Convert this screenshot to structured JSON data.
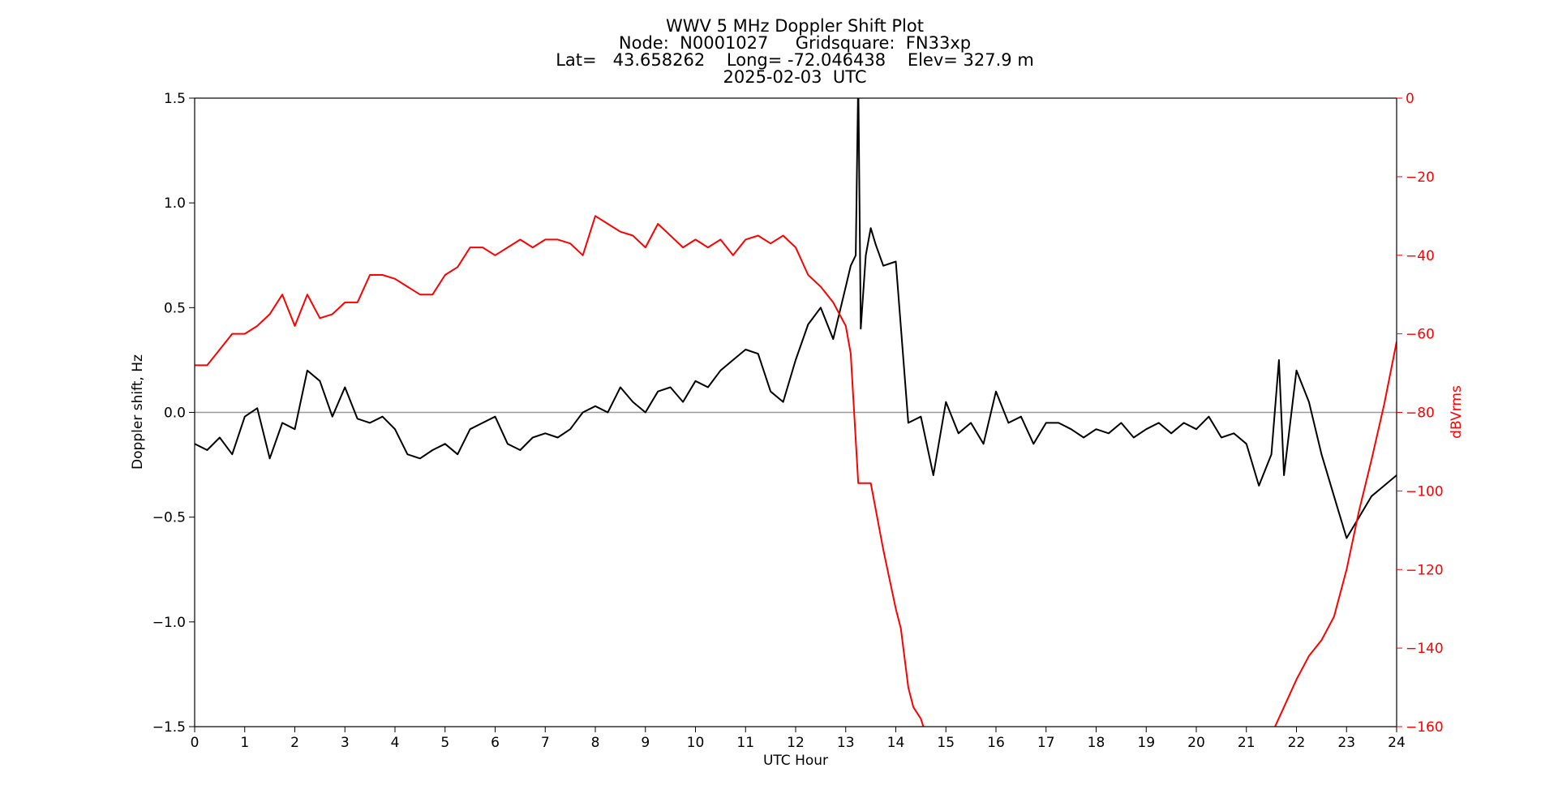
{
  "chart_data": {
    "type": "line",
    "title_lines": [
      "WWV 5 MHz Doppler Shift Plot",
      "Node:  N0001027     Gridsquare:  FN33xp",
      "Lat=   43.658262    Long= -72.046438    Elev= 327.9 m",
      "2025-02-03  UTC"
    ],
    "xlabel": "UTC Hour",
    "ylabel_left": "Doppler shift, Hz",
    "ylabel_right": "dBVrms",
    "xlim": [
      0,
      24
    ],
    "ylim_left": [
      -1.5,
      1.5
    ],
    "ylim_right": [
      -160,
      0
    ],
    "x_ticks": [
      "0",
      "1",
      "2",
      "3",
      "4",
      "5",
      "6",
      "7",
      "8",
      "9",
      "10",
      "11",
      "12",
      "13",
      "14",
      "15",
      "16",
      "17",
      "18",
      "19",
      "20",
      "21",
      "22",
      "23",
      "24"
    ],
    "y_left_ticks": [
      "1.5",
      "1.0",
      "0.5",
      "0.0",
      "−0.5",
      "−1.0",
      "−1.5"
    ],
    "y_left_tick_values": [
      1.5,
      1.0,
      0.5,
      0.0,
      -0.5,
      -1.0,
      -1.5
    ],
    "y_right_ticks": [
      "0",
      "−20",
      "−40",
      "−60",
      "−80",
      "−100",
      "−120",
      "−140",
      "−160"
    ],
    "y_right_tick_values": [
      0,
      -20,
      -40,
      -60,
      -80,
      -100,
      -120,
      -140,
      -160
    ],
    "zero_line": 0.0,
    "series": [
      {
        "axis": "left",
        "color": "#000000",
        "x": [
          0,
          0.25,
          0.5,
          0.75,
          1,
          1.25,
          1.5,
          1.75,
          2,
          2.25,
          2.5,
          2.75,
          3,
          3.25,
          3.5,
          3.75,
          4,
          4.25,
          4.5,
          4.75,
          5,
          5.25,
          5.5,
          5.75,
          6,
          6.25,
          6.5,
          6.75,
          7,
          7.25,
          7.5,
          7.75,
          8,
          8.25,
          8.5,
          8.75,
          9,
          9.25,
          9.5,
          9.75,
          10,
          10.25,
          10.5,
          10.75,
          11,
          11.25,
          11.5,
          11.75,
          12,
          12.25,
          12.5,
          12.75,
          13,
          13.1,
          13.2,
          13.25,
          13.3,
          13.4,
          13.5,
          13.6,
          13.75,
          14,
          14.25,
          14.5,
          14.75,
          15,
          15.25,
          15.5,
          15.75,
          16,
          16.25,
          16.5,
          16.75,
          17,
          17.25,
          17.5,
          17.75,
          18,
          18.25,
          18.5,
          18.75,
          19,
          19.25,
          19.5,
          19.75,
          20,
          20.25,
          20.5,
          20.75,
          21,
          21.25,
          21.5,
          21.65,
          21.75,
          22,
          22.25,
          22.5,
          22.75,
          23,
          23.25,
          23.5,
          23.75,
          24
        ],
        "y": [
          -0.15,
          -0.18,
          -0.12,
          -0.2,
          -0.02,
          0.02,
          -0.22,
          -0.05,
          -0.08,
          0.2,
          0.15,
          -0.02,
          0.12,
          -0.03,
          -0.05,
          -0.02,
          -0.08,
          -0.2,
          -0.22,
          -0.18,
          -0.15,
          -0.2,
          -0.08,
          -0.05,
          -0.02,
          -0.15,
          -0.18,
          -0.12,
          -0.1,
          -0.12,
          -0.08,
          0.0,
          0.03,
          0.0,
          0.12,
          0.05,
          0.0,
          0.1,
          0.12,
          0.05,
          0.15,
          0.12,
          0.2,
          0.25,
          0.3,
          0.28,
          0.1,
          0.05,
          0.25,
          0.42,
          0.5,
          0.35,
          0.6,
          0.7,
          0.75,
          1.6,
          0.4,
          0.75,
          0.88,
          0.8,
          0.7,
          0.72,
          -0.05,
          -0.02,
          -0.3,
          0.05,
          -0.1,
          -0.05,
          -0.15,
          0.1,
          -0.05,
          -0.02,
          -0.15,
          -0.05,
          -0.05,
          -0.08,
          -0.12,
          -0.08,
          -0.1,
          -0.05,
          -0.12,
          -0.08,
          -0.05,
          -0.1,
          -0.05,
          -0.08,
          -0.02,
          -0.12,
          -0.1,
          -0.15,
          -0.35,
          -0.2,
          0.25,
          -0.3,
          0.2,
          0.05,
          -0.2,
          -0.4,
          -0.6,
          -0.5,
          -0.4,
          -0.35,
          -0.3
        ],
        "name": ""
      },
      {
        "axis": "right",
        "color": "#ff0000",
        "x": [
          0,
          0.25,
          0.5,
          0.75,
          1,
          1.25,
          1.5,
          1.75,
          2,
          2.25,
          2.5,
          2.75,
          3,
          3.25,
          3.5,
          3.75,
          4,
          4.25,
          4.5,
          4.75,
          5,
          5.25,
          5.5,
          5.75,
          6,
          6.25,
          6.5,
          6.75,
          7,
          7.25,
          7.5,
          7.75,
          8,
          8.25,
          8.5,
          8.75,
          9,
          9.25,
          9.5,
          9.75,
          10,
          10.25,
          10.5,
          10.75,
          11,
          11.25,
          11.5,
          11.75,
          12,
          12.25,
          12.5,
          12.75,
          13,
          13.1,
          13.25,
          13.5,
          13.75,
          14,
          14.1,
          14.25,
          14.35,
          14.5,
          14.6,
          21.5,
          21.75,
          22,
          22.25,
          22.5,
          22.75,
          23,
          23.25,
          23.5,
          23.75,
          24
        ],
        "y": [
          -68,
          -68,
          -64,
          -60,
          -60,
          -58,
          -55,
          -50,
          -58,
          -50,
          -56,
          -55,
          -52,
          -52,
          -45,
          -45,
          -46,
          -48,
          -50,
          -50,
          -45,
          -43,
          -38,
          -38,
          -40,
          -38,
          -36,
          -38,
          -36,
          -36,
          -37,
          -40,
          -30,
          -32,
          -34,
          -35,
          -38,
          -32,
          -35,
          -38,
          -36,
          -38,
          -36,
          -40,
          -36,
          -35,
          -37,
          -35,
          -38,
          -45,
          -48,
          -52,
          -58,
          -65,
          -98,
          -98,
          -115,
          -130,
          -135,
          -150,
          -155,
          -158,
          -162,
          -162,
          -155,
          -148,
          -142,
          -138,
          -132,
          -120,
          -105,
          -92,
          -78,
          -62
        ],
        "name": ""
      }
    ]
  }
}
